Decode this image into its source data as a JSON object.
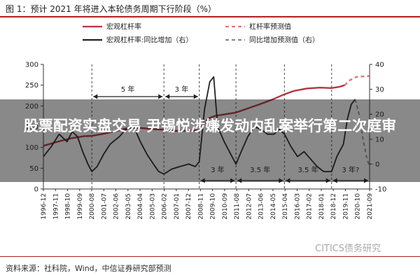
{
  "figure": {
    "title": "图 1：预计 2021 年将进入本轮债务周期下行阶段（%）",
    "source": "资料来源：社科院，Wind，中信证券研究部预测",
    "watermark": "CITICS债务研究",
    "overlay_headline": "股票配资实盘交易 尹锡悦涉嫌发动内乱案举行第二次庭审"
  },
  "chart_data": {
    "type": "line",
    "title": "",
    "legend_position": "top",
    "left_axis": {
      "ylim": [
        0,
        300
      ],
      "ticks": [
        0,
        50,
        100,
        150,
        200,
        250,
        300
      ]
    },
    "right_axis": {
      "ylim": [
        -10,
        40
      ],
      "ticks": [
        -10,
        0,
        10,
        20,
        30,
        40
      ]
    },
    "x_ticks": [
      "1996-12",
      "1997-11",
      "1998-10",
      "1999-09",
      "2000-08",
      "2001-07",
      "2002-06",
      "2003-05",
      "2004-04",
      "2005-03",
      "2006-02",
      "2007-01",
      "2007-12",
      "2008-11",
      "2009-10",
      "2010-09",
      "2011-08",
      "2012-07",
      "2013-06",
      "2014-05",
      "2015-04",
      "2016-03",
      "2017-02",
      "2018-01",
      "2018-12",
      "2019-11",
      "2020-10",
      "2021-09"
    ],
    "x_range": [
      1996.9,
      2021.8
    ],
    "vlines": [
      2000.6,
      2006.1,
      2008.8,
      2011.6,
      2015.3,
      2018.9
    ],
    "annotations": [
      {
        "label": "5 年",
        "x1": 2000.6,
        "x2": 2006.1,
        "level": "top"
      },
      {
        "label": "3 年",
        "x1": 2006.1,
        "x2": 2008.8,
        "level": "top"
      },
      {
        "label": "3 年",
        "x1": 2008.8,
        "x2": 2011.6,
        "level": "bottom"
      },
      {
        "label": "3.5 年",
        "x1": 2011.6,
        "x2": 2015.3,
        "level": "bottom"
      },
      {
        "label": "3.5 年",
        "x1": 2015.3,
        "x2": 2018.9,
        "level": "bottom"
      },
      {
        "label": "3 年?",
        "x1": 2018.9,
        "x2": 2021.8,
        "level": "bottom"
      }
    ],
    "series": [
      {
        "name": "宏观杠杆率",
        "axis": "left",
        "color": "#b5343c",
        "style": "solid",
        "points": [
          [
            1996.9,
            104
          ],
          [
            1998,
            114
          ],
          [
            1999,
            122
          ],
          [
            2000,
            127
          ],
          [
            2000.6,
            128
          ],
          [
            2001.5,
            133
          ],
          [
            2002.5,
            140
          ],
          [
            2003.5,
            148
          ],
          [
            2004.3,
            147
          ],
          [
            2005,
            145
          ],
          [
            2006,
            143
          ],
          [
            2007,
            140
          ],
          [
            2008,
            140
          ],
          [
            2008.8,
            142
          ],
          [
            2009.5,
            170
          ],
          [
            2010,
            176
          ],
          [
            2010.8,
            180
          ],
          [
            2011.6,
            184
          ],
          [
            2012.5,
            194
          ],
          [
            2013.5,
            205
          ],
          [
            2014.5,
            217
          ],
          [
            2015.3,
            228
          ],
          [
            2016,
            236
          ],
          [
            2017,
            242
          ],
          [
            2018,
            244
          ],
          [
            2018.9,
            243
          ],
          [
            2019.5,
            246
          ],
          [
            2019.9,
            250
          ]
        ]
      },
      {
        "name": "杠杆率预测值",
        "axis": "left",
        "color": "#d77a80",
        "style": "dashed",
        "points": [
          [
            2019.9,
            250
          ],
          [
            2020.3,
            262
          ],
          [
            2020.8,
            270
          ],
          [
            2021.8,
            272
          ]
        ]
      },
      {
        "name": "宏观杠杆率:同比增加（右）",
        "axis": "right",
        "color": "#222222",
        "style": "solid",
        "points": [
          [
            1996.9,
            3
          ],
          [
            1997.5,
            7
          ],
          [
            1998.1,
            12
          ],
          [
            1998.7,
            9
          ],
          [
            1999.1,
            13
          ],
          [
            1999.5,
            11
          ],
          [
            1999.9,
            5
          ],
          [
            2000.3,
            0
          ],
          [
            2000.6,
            -3
          ],
          [
            2001,
            -1
          ],
          [
            2001.5,
            4
          ],
          [
            2002,
            8
          ],
          [
            2002.7,
            11
          ],
          [
            2003.2,
            14
          ],
          [
            2003.8,
            15
          ],
          [
            2004.3,
            9
          ],
          [
            2004.8,
            4
          ],
          [
            2005.3,
            0
          ],
          [
            2005.7,
            -3
          ],
          [
            2006.1,
            -4
          ],
          [
            2006.7,
            -2
          ],
          [
            2007.3,
            -1
          ],
          [
            2008,
            0
          ],
          [
            2008.5,
            -1
          ],
          [
            2008.8,
            1
          ],
          [
            2009.2,
            22
          ],
          [
            2009.6,
            33
          ],
          [
            2009.9,
            35
          ],
          [
            2010.2,
            15
          ],
          [
            2010.7,
            9
          ],
          [
            2011.2,
            4
          ],
          [
            2011.6,
            0
          ],
          [
            2012,
            5
          ],
          [
            2012.5,
            11
          ],
          [
            2013,
            15
          ],
          [
            2013.5,
            14
          ],
          [
            2014,
            12
          ],
          [
            2014.5,
            12
          ],
          [
            2014.9,
            14
          ],
          [
            2015.3,
            12
          ],
          [
            2015.8,
            7
          ],
          [
            2016.3,
            3
          ],
          [
            2016.8,
            5
          ],
          [
            2017.3,
            2
          ],
          [
            2017.8,
            -1
          ],
          [
            2018.3,
            -3
          ],
          [
            2018.9,
            -3
          ],
          [
            2019.3,
            3
          ],
          [
            2019.8,
            8
          ],
          [
            2020.1,
            18
          ],
          [
            2020.4,
            24
          ],
          [
            2020.7,
            26
          ]
        ]
      },
      {
        "name": "同比增加预测值（右）",
        "axis": "right",
        "color": "#8a8a8a",
        "style": "dashed",
        "points": [
          [
            2020.7,
            26
          ],
          [
            2021.0,
            20
          ],
          [
            2021.3,
            10
          ],
          [
            2021.6,
            2
          ],
          [
            2021.8,
            -1
          ]
        ]
      }
    ]
  }
}
